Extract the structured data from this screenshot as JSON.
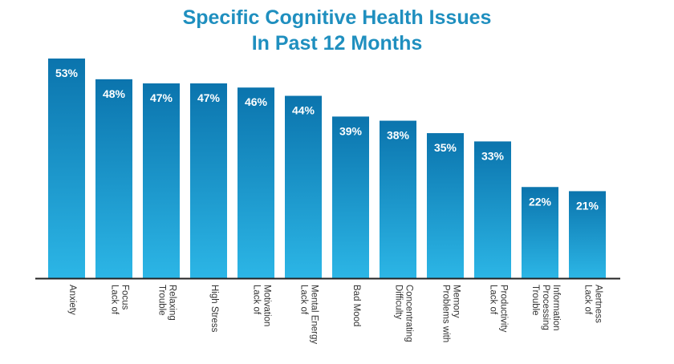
{
  "chart_data": {
    "type": "bar",
    "title_lines": [
      "Specific Cognitive Health Issues",
      "In Past 12 Months"
    ],
    "categories": [
      [
        "Anxiety"
      ],
      [
        "Lack of",
        "Focus"
      ],
      [
        "Trouble",
        "Relaxing"
      ],
      [
        "High Stress"
      ],
      [
        "Lack of",
        "Motivation"
      ],
      [
        "Lack of",
        "Mental Energy"
      ],
      [
        "Bad Mood"
      ],
      [
        "Difficulty",
        "Concentrating"
      ],
      [
        "Problems with",
        "Memory"
      ],
      [
        "Lack of",
        "Productivity"
      ],
      [
        "Trouble",
        "Processing",
        "Information"
      ],
      [
        "Lack of",
        "Alertness"
      ]
    ],
    "values": [
      53,
      48,
      47,
      47,
      46,
      44,
      39,
      38,
      35,
      33,
      22,
      21
    ],
    "value_labels": [
      "53%",
      "48%",
      "47%",
      "47%",
      "46%",
      "44%",
      "39%",
      "38%",
      "35%",
      "33%",
      "22%",
      "21%"
    ],
    "unit": "%",
    "ylim": [
      0,
      53
    ],
    "grid": false,
    "legend": "none",
    "colors": {
      "title": "#1f8fbf",
      "bar_top": "#0b74ad",
      "bar_bottom": "#2cb6e6",
      "value_label": "#ffffff",
      "axis": "#222222",
      "category_label": "#333333"
    }
  }
}
